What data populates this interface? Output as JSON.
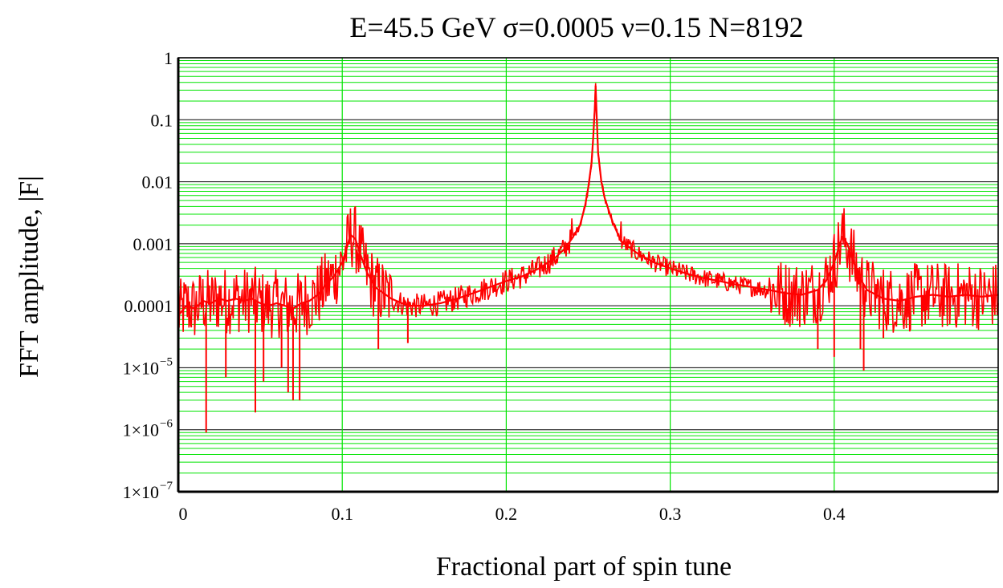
{
  "chart_data": {
    "type": "line",
    "title": "E=45.5 GeV   σ=0.0005   ν=0.15   N=8192",
    "xlabel": "Fractional part of spin tune",
    "ylabel": "FFT amplitude, |F|",
    "xlim": [
      0,
      0.5
    ],
    "ylim": [
      1e-07,
      1
    ],
    "yscale": "log",
    "grid": true,
    "x_ticks": [
      {
        "value": 0,
        "label": "0"
      },
      {
        "value": 0.1,
        "label": "0.1"
      },
      {
        "value": 0.2,
        "label": "0.2"
      },
      {
        "value": 0.3,
        "label": "0.3"
      },
      {
        "value": 0.4,
        "label": "0.4"
      }
    ],
    "y_ticks": [
      {
        "value": 1,
        "label": "1"
      },
      {
        "value": 0.1,
        "label": "0.1"
      },
      {
        "value": 0.01,
        "label": "0.01"
      },
      {
        "value": 0.001,
        "label": "0.001"
      },
      {
        "value": 0.0001,
        "label": "0.0001"
      },
      {
        "value": 1e-05,
        "mant": "1×10",
        "exp": "−5"
      },
      {
        "value": 1e-06,
        "mant": "1×10",
        "exp": "−6"
      },
      {
        "value": 1e-07,
        "mant": "1×10",
        "exp": "−7"
      }
    ],
    "series": [
      {
        "color": "#ff0000",
        "x": [
          0,
          0.005,
          0.01,
          0.015,
          0.02,
          0.025,
          0.03,
          0.035,
          0.04,
          0.045,
          0.05,
          0.055,
          0.06,
          0.065,
          0.07,
          0.075,
          0.08,
          0.085,
          0.09,
          0.095,
          0.1,
          0.103,
          0.105,
          0.108,
          0.11,
          0.115,
          0.12,
          0.13,
          0.14,
          0.15,
          0.16,
          0.17,
          0.18,
          0.19,
          0.2,
          0.21,
          0.22,
          0.23,
          0.235,
          0.24,
          0.245,
          0.248,
          0.25,
          0.252,
          0.253,
          0.254,
          0.2545,
          0.255,
          0.256,
          0.258,
          0.26,
          0.265,
          0.27,
          0.28,
          0.29,
          0.3,
          0.31,
          0.32,
          0.33,
          0.34,
          0.35,
          0.36,
          0.37,
          0.38,
          0.39,
          0.395,
          0.4,
          0.403,
          0.405,
          0.408,
          0.41,
          0.415,
          0.42,
          0.43,
          0.44,
          0.45,
          0.46,
          0.47,
          0.48,
          0.49,
          0.5
        ],
        "y": [
          7e-05,
          0.0001,
          9e-05,
          0.00012,
          0.00011,
          0.00013,
          0.00012,
          0.00013,
          0.00012,
          0.00013,
          0.00011,
          0.0001,
          0.00011,
          0.0001,
          9e-05,
          0.00011,
          0.00012,
          0.00015,
          0.00022,
          0.0003,
          0.0005,
          0.0009,
          0.0014,
          0.0012,
          0.0008,
          0.00035,
          0.0002,
          0.00013,
          0.0001,
          0.0001,
          0.00011,
          0.00013,
          0.00016,
          0.0002,
          0.00025,
          0.0003,
          0.0004,
          0.0006,
          0.0008,
          0.0012,
          0.002,
          0.004,
          0.008,
          0.02,
          0.05,
          0.15,
          0.35,
          0.15,
          0.03,
          0.01,
          0.0055,
          0.0022,
          0.0011,
          0.0007,
          0.0005,
          0.0004,
          0.00033,
          0.00028,
          0.00025,
          0.00022,
          0.0002,
          0.00018,
          0.00016,
          0.00015,
          0.00018,
          0.00025,
          0.0005,
          0.0009,
          0.0013,
          0.001,
          0.0007,
          0.0003,
          0.00018,
          0.00013,
          0.00012,
          0.00014,
          0.00015,
          0.00014,
          0.00015,
          0.00014,
          0.00015
        ]
      }
    ],
    "dips": [
      {
        "x": 0.017,
        "y": 9e-07
      },
      {
        "x": 0.047,
        "y": 1.9e-06
      },
      {
        "x": 0.052,
        "y": 6e-06
      },
      {
        "x": 0.067,
        "y": 4e-06
      },
      {
        "x": 0.07,
        "y": 3e-06
      },
      {
        "x": 0.074,
        "y": 3e-06
      },
      {
        "x": 0.063,
        "y": 1e-05
      },
      {
        "x": 0.029,
        "y": 7e-06
      },
      {
        "x": 0.122,
        "y": 2e-05
      },
      {
        "x": 0.14,
        "y": 2.5e-05
      },
      {
        "x": 0.39,
        "y": 2e-05
      },
      {
        "x": 0.4,
        "y": 1.5e-05
      },
      {
        "x": 0.416,
        "y": 2e-05
      },
      {
        "x": 0.418,
        "y": 9e-06
      },
      {
        "x": 0.43,
        "y": 3e-05
      }
    ]
  }
}
